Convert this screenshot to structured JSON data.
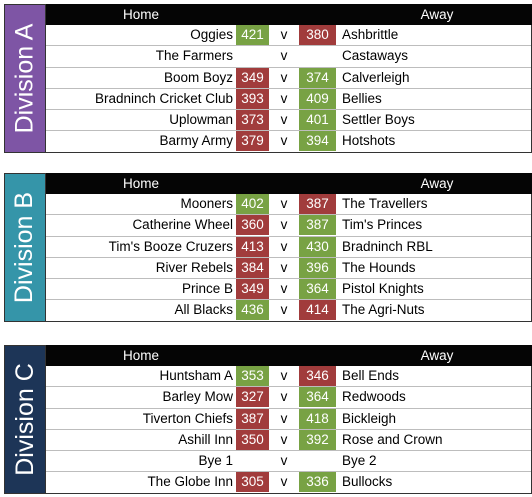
{
  "header": {
    "home_label": "Home",
    "away_label": "Away",
    "versus": "v"
  },
  "divisions": [
    {
      "name": "Division A",
      "color": "#7e55a5",
      "matches": [
        {
          "home": "Oggies",
          "home_score": "421",
          "away_score": "380",
          "away": "Ashbrittle",
          "winner": "home"
        },
        {
          "home": "The Farmers",
          "home_score": "",
          "away_score": "",
          "away": "Castaways",
          "winner": ""
        },
        {
          "home": "Boom Boyz",
          "home_score": "349",
          "away_score": "374",
          "away": "Calverleigh",
          "winner": "away"
        },
        {
          "home": "Bradninch Cricket Club",
          "home_score": "393",
          "away_score": "409",
          "away": "Bellies",
          "winner": "away"
        },
        {
          "home": "Uplowman",
          "home_score": "373",
          "away_score": "401",
          "away": "Settler Boys",
          "winner": "away"
        },
        {
          "home": "Barmy Army",
          "home_score": "379",
          "away_score": "394",
          "away": "Hotshots",
          "winner": "away"
        }
      ]
    },
    {
      "name": "Division B",
      "color": "#3595a9",
      "matches": [
        {
          "home": "Mooners",
          "home_score": "402",
          "away_score": "387",
          "away": "The Travellers",
          "winner": "home"
        },
        {
          "home": "Catherine Wheel",
          "home_score": "360",
          "away_score": "387",
          "away": "Tim's Princes",
          "winner": "away"
        },
        {
          "home": "Tim's Booze Cruzers",
          "home_score": "413",
          "away_score": "430",
          "away": "Bradninch RBL",
          "winner": "away"
        },
        {
          "home": "River Rebels",
          "home_score": "384",
          "away_score": "396",
          "away": "The Hounds",
          "winner": "away"
        },
        {
          "home": "Prince B",
          "home_score": "349",
          "away_score": "364",
          "away": "Pistol Knights",
          "winner": "away"
        },
        {
          "home": "All Blacks",
          "home_score": "436",
          "away_score": "414",
          "away": "The Agri-Nuts",
          "winner": "home"
        }
      ]
    },
    {
      "name": "Division C",
      "color": "#1d3557",
      "matches": [
        {
          "home": "Huntsham A",
          "home_score": "353",
          "away_score": "346",
          "away": "Bell Ends",
          "winner": "home"
        },
        {
          "home": "Barley Mow",
          "home_score": "327",
          "away_score": "364",
          "away": "Redwoods",
          "winner": "away"
        },
        {
          "home": "Tiverton Chiefs",
          "home_score": "387",
          "away_score": "418",
          "away": "Bickleigh",
          "winner": "away"
        },
        {
          "home": "Ashill Inn",
          "home_score": "350",
          "away_score": "392",
          "away": "Rose and Crown",
          "winner": "away"
        },
        {
          "home": "Bye 1",
          "home_score": "",
          "away_score": "",
          "away": "Bye 2",
          "winner": ""
        },
        {
          "home": "The Globe Inn",
          "home_score": "305",
          "away_score": "336",
          "away": "Bullocks",
          "winner": "away"
        }
      ]
    }
  ]
}
